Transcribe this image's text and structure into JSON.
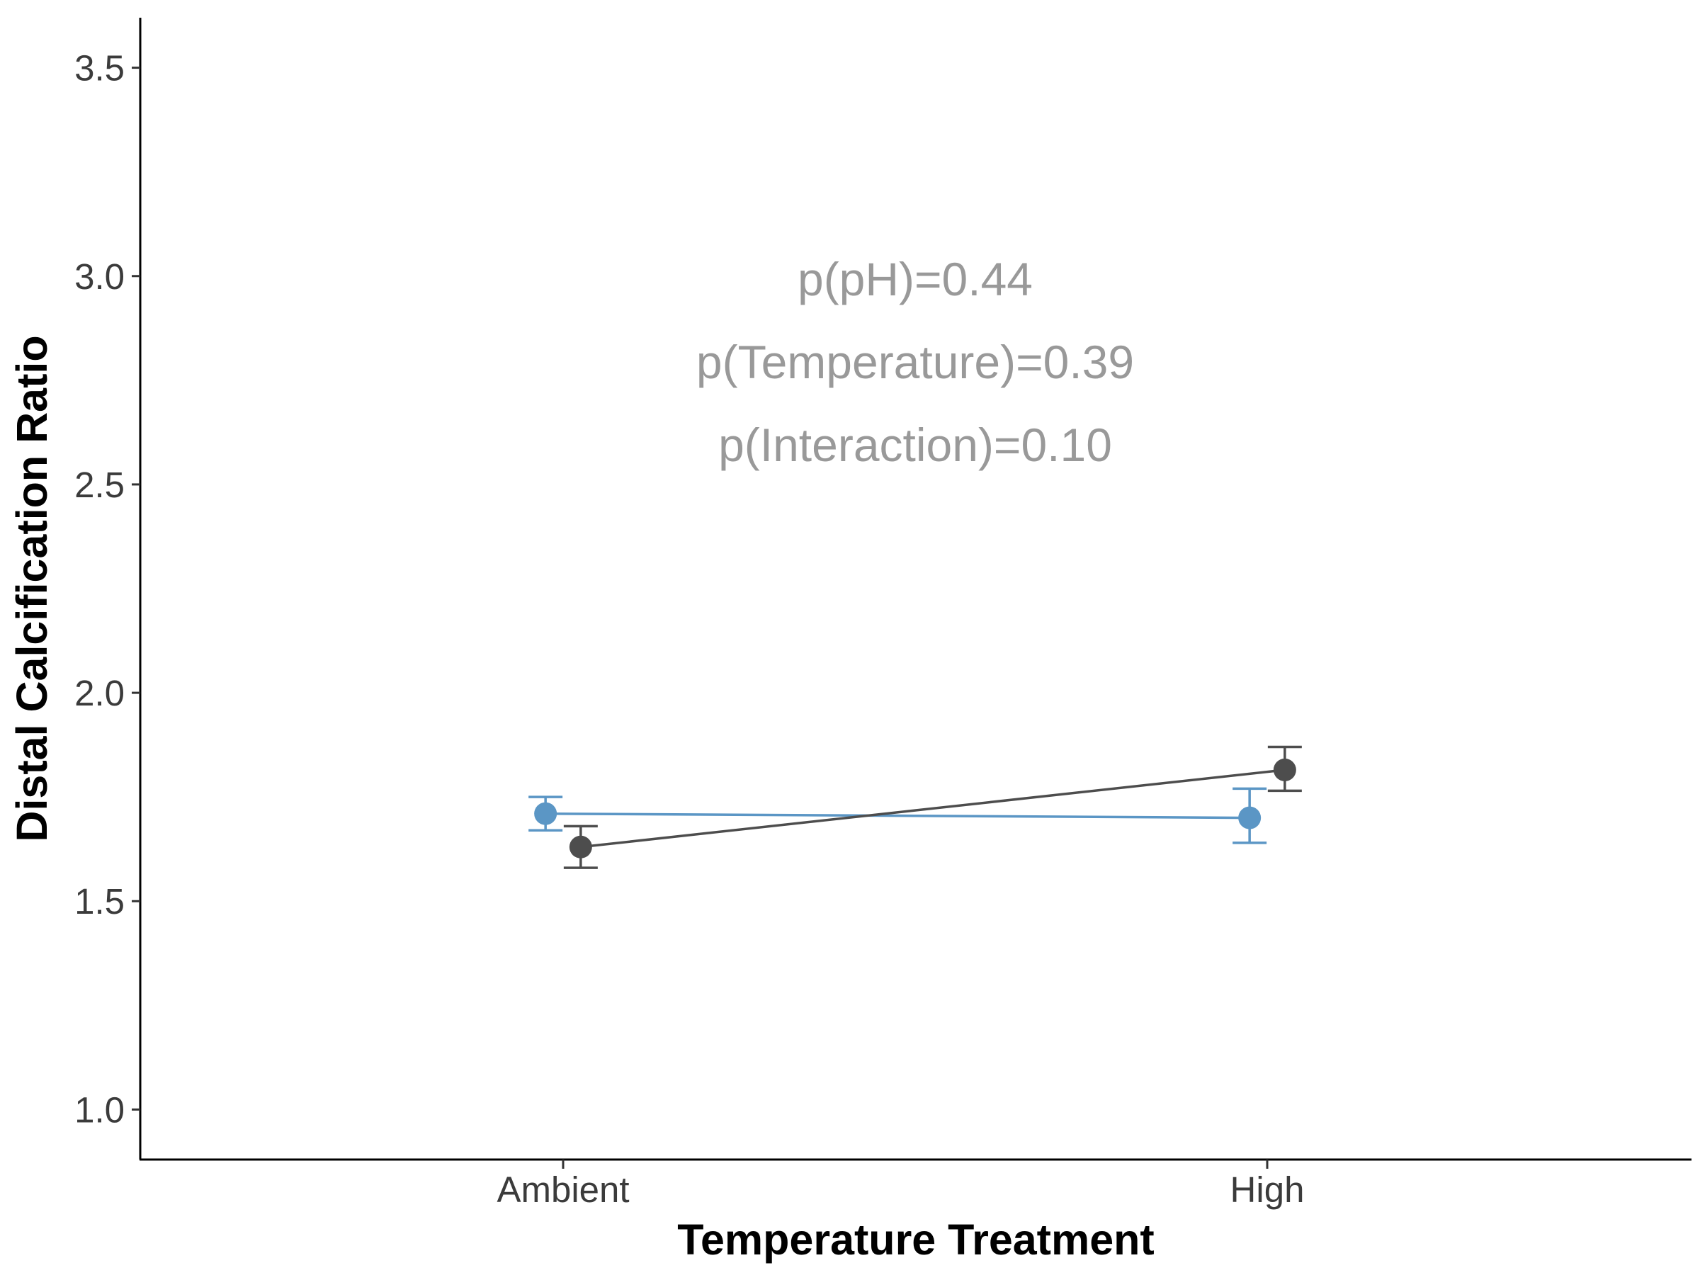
{
  "chart_data": {
    "type": "line",
    "xlabel": "Temperature Treatment",
    "ylabel": "Distal Calcification Ratio",
    "categories": [
      "Ambient",
      "High"
    ],
    "ylim": [
      0.88,
      3.62
    ],
    "yticks": [
      "1.0",
      "1.5",
      "2.0",
      "2.5",
      "3.0",
      "3.5"
    ],
    "grid": false,
    "legend": "none",
    "series": [
      {
        "color": "#5b96c5",
        "offset": -0.025,
        "values": [
          1.71,
          1.7
        ],
        "err_low": [
          1.67,
          1.64
        ],
        "err_high": [
          1.75,
          1.77
        ]
      },
      {
        "color": "#4d4d4d",
        "offset": 0.025,
        "values": [
          1.63,
          1.815
        ],
        "err_low": [
          1.58,
          1.765
        ],
        "err_high": [
          1.68,
          1.87
        ]
      }
    ],
    "annotations": [
      "p(pH)=0.44",
      "p(Temperature)=0.39",
      "p(Interaction)=0.10"
    ]
  }
}
